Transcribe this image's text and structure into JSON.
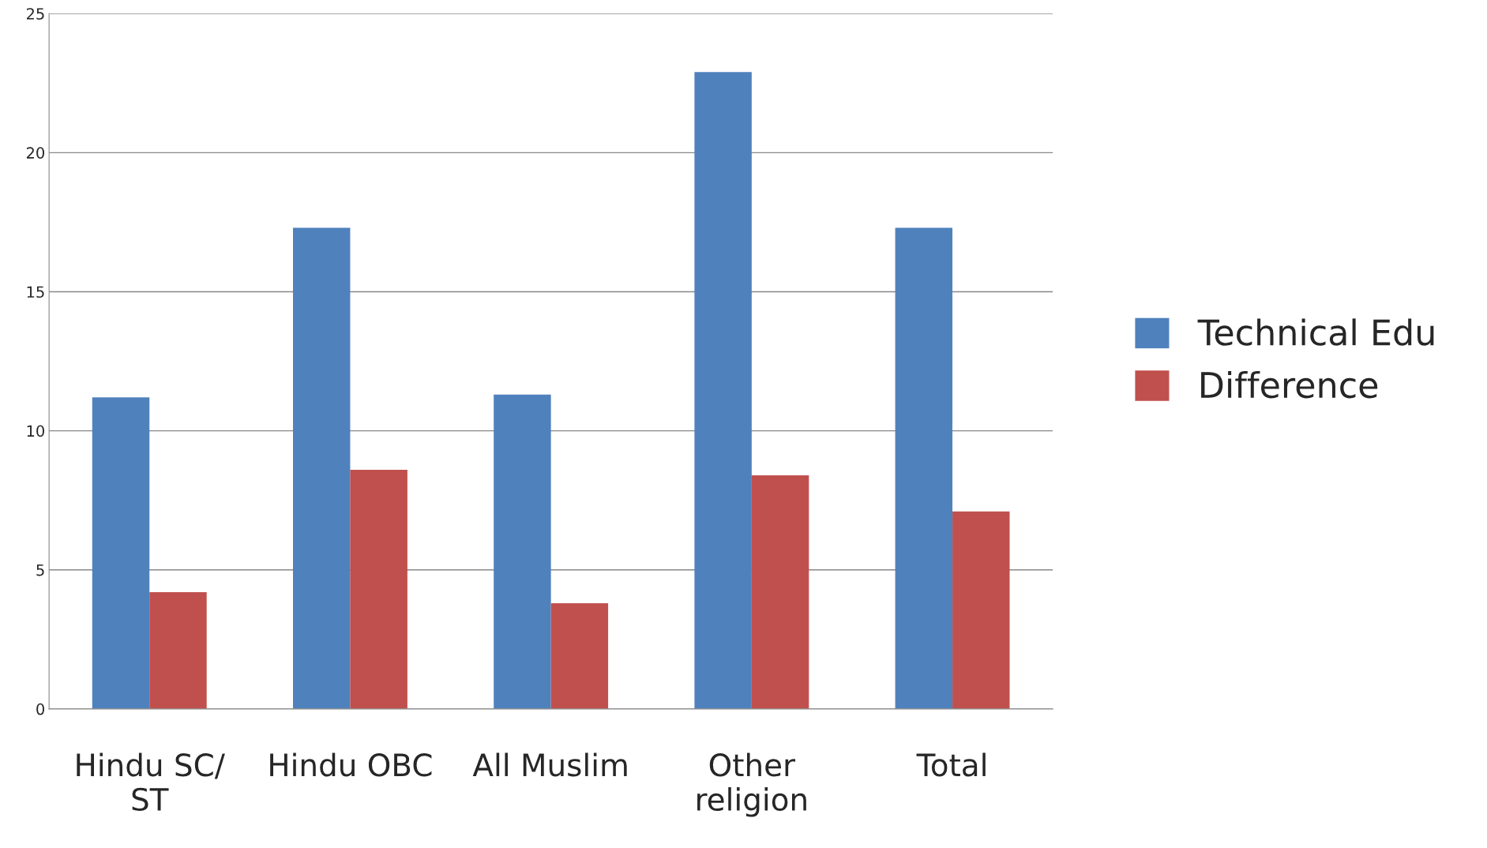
{
  "chart_data": {
    "type": "bar",
    "categories": [
      "Hindu SC/\nST",
      "Hindu OBC",
      "All Muslim",
      "Other\nreligion",
      "Total"
    ],
    "series": [
      {
        "name": "Technical Edu",
        "color": "#4f81bd",
        "values": [
          11.2,
          17.3,
          11.3,
          22.9,
          17.3
        ]
      },
      {
        "name": "Difference",
        "color": "#c0504d",
        "values": [
          4.2,
          8.6,
          3.8,
          8.4,
          7.1
        ]
      }
    ],
    "ylim": [
      0,
      25
    ],
    "yticks": [
      0,
      5,
      10,
      15,
      20,
      25
    ],
    "grid": "y",
    "legend": "right"
  }
}
